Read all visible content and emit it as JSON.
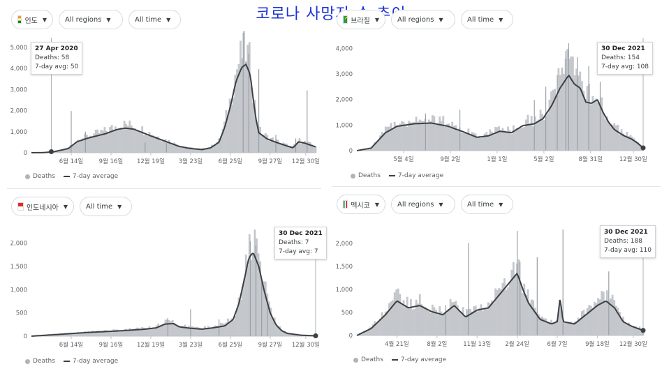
{
  "title": "코로나 사망자 수 추이",
  "legend": {
    "bars": "Deaths",
    "line": "7-day average"
  },
  "chart_data": [
    {
      "id": "india",
      "type": "bar",
      "controls": [
        {
          "kind": "country",
          "flag": "in",
          "label": "인도"
        },
        {
          "kind": "select",
          "label": "All regions"
        },
        {
          "kind": "select",
          "label": "All time"
        }
      ],
      "x_ticks": [
        "6월 14일",
        "9월 16일",
        "12월 19일",
        "3월 23일",
        "6월 25일",
        "9월 27일",
        "12월 30일"
      ],
      "y_ticks": [
        0,
        1000,
        2000,
        3000,
        4000,
        5000
      ],
      "y_tick_labels": [
        "0",
        "1,000",
        "2,000",
        "3,000",
        "4,000",
        "5,000"
      ],
      "ylim": [
        0,
        5200
      ],
      "avg_keyframes": [
        [
          0,
          0
        ],
        [
          0.04,
          5
        ],
        [
          0.08,
          50
        ],
        [
          0.13,
          200
        ],
        [
          0.16,
          520
        ],
        [
          0.2,
          700
        ],
        [
          0.26,
          900
        ],
        [
          0.3,
          1100
        ],
        [
          0.33,
          1170
        ],
        [
          0.36,
          1120
        ],
        [
          0.42,
          800
        ],
        [
          0.48,
          500
        ],
        [
          0.52,
          300
        ],
        [
          0.56,
          200
        ],
        [
          0.6,
          150
        ],
        [
          0.63,
          230
        ],
        [
          0.66,
          500
        ],
        [
          0.68,
          1200
        ],
        [
          0.7,
          2200
        ],
        [
          0.72,
          3400
        ],
        [
          0.74,
          4050
        ],
        [
          0.755,
          4200
        ],
        [
          0.77,
          3700
        ],
        [
          0.78,
          2600
        ],
        [
          0.79,
          1600
        ],
        [
          0.8,
          950
        ],
        [
          0.83,
          650
        ],
        [
          0.86,
          500
        ],
        [
          0.89,
          360
        ],
        [
          0.92,
          230
        ],
        [
          0.94,
          520
        ],
        [
          0.96,
          460
        ],
        [
          1,
          280
        ]
      ],
      "spikes": [
        [
          0.14,
          1980
        ],
        [
          0.19,
          1000
        ],
        [
          0.4,
          480
        ],
        [
          0.475,
          460
        ],
        [
          0.745,
          5700
        ],
        [
          0.765,
          4700
        ],
        [
          0.8,
          3970
        ],
        [
          0.86,
          850
        ],
        [
          0.93,
          680
        ],
        [
          0.97,
          2960
        ]
      ],
      "tooltip": {
        "date": "27 Apr 2020",
        "deaths": "Deaths: 58",
        "avg": "7-day avg: 50",
        "at": 0.07,
        "value": 50
      }
    },
    {
      "id": "brazil",
      "type": "bar",
      "controls": [
        {
          "kind": "country",
          "flag": "br",
          "label": "브라질"
        },
        {
          "kind": "select",
          "label": "All regions"
        },
        {
          "kind": "select",
          "label": "All time"
        }
      ],
      "x_ticks": [
        "5월 4일",
        "9월 2일",
        "1월 1일",
        "5월 2일",
        "8월 31일",
        "12월 30일"
      ],
      "y_ticks": [
        0,
        1000,
        2000,
        3000,
        4000
      ],
      "y_tick_labels": [
        "0",
        "1,000",
        "2,000",
        "3,000",
        "4,000"
      ],
      "ylim": [
        0,
        4200
      ],
      "avg_keyframes": [
        [
          0,
          0
        ],
        [
          0.05,
          100
        ],
        [
          0.1,
          700
        ],
        [
          0.14,
          950
        ],
        [
          0.2,
          1050
        ],
        [
          0.26,
          1080
        ],
        [
          0.32,
          950
        ],
        [
          0.38,
          700
        ],
        [
          0.42,
          520
        ],
        [
          0.46,
          580
        ],
        [
          0.5,
          760
        ],
        [
          0.54,
          700
        ],
        [
          0.58,
          980
        ],
        [
          0.62,
          1050
        ],
        [
          0.65,
          1250
        ],
        [
          0.68,
          1750
        ],
        [
          0.71,
          2450
        ],
        [
          0.74,
          2950
        ],
        [
          0.76,
          2600
        ],
        [
          0.78,
          2450
        ],
        [
          0.8,
          1900
        ],
        [
          0.82,
          1850
        ],
        [
          0.84,
          2000
        ],
        [
          0.86,
          1500
        ],
        [
          0.88,
          1100
        ],
        [
          0.9,
          820
        ],
        [
          0.93,
          600
        ],
        [
          0.96,
          450
        ],
        [
          0.98,
          300
        ],
        [
          1,
          108
        ]
      ],
      "spikes": [
        [
          0.74,
          4200
        ],
        [
          0.73,
          3900
        ],
        [
          0.77,
          3650
        ],
        [
          0.81,
          3300
        ],
        [
          0.85,
          2700
        ],
        [
          0.7,
          2950
        ],
        [
          0.62,
          1980
        ],
        [
          0.66,
          2500
        ],
        [
          0.36,
          1600
        ],
        [
          0.24,
          1450
        ]
      ],
      "tooltip": {
        "date": "30 Dec 2021",
        "deaths": "Deaths: 154",
        "avg": "7-day avg: 108",
        "at": 1,
        "value": 108
      }
    },
    {
      "id": "indonesia",
      "type": "bar",
      "controls": [
        {
          "kind": "country",
          "flag": "id",
          "label": "인도네시아"
        },
        {
          "kind": "select",
          "label": "All time"
        }
      ],
      "x_ticks": [
        "6월 14일",
        "9월 16일",
        "12월 19일",
        "3월 23일",
        "6월 25일",
        "9월 27일",
        "12월 30일"
      ],
      "y_ticks": [
        0,
        500,
        1000,
        1500,
        2000
      ],
      "y_tick_labels": [
        "0",
        "500",
        "1,000",
        "1,500",
        "2,000"
      ],
      "ylim": [
        0,
        2100
      ],
      "avg_keyframes": [
        [
          0,
          0
        ],
        [
          0.05,
          20
        ],
        [
          0.1,
          40
        ],
        [
          0.2,
          80
        ],
        [
          0.3,
          110
        ],
        [
          0.4,
          150
        ],
        [
          0.44,
          180
        ],
        [
          0.47,
          260
        ],
        [
          0.5,
          270
        ],
        [
          0.52,
          200
        ],
        [
          0.56,
          170
        ],
        [
          0.6,
          150
        ],
        [
          0.64,
          180
        ],
        [
          0.68,
          220
        ],
        [
          0.71,
          360
        ],
        [
          0.73,
          700
        ],
        [
          0.75,
          1250
        ],
        [
          0.765,
          1680
        ],
        [
          0.78,
          1800
        ],
        [
          0.8,
          1500
        ],
        [
          0.82,
          950
        ],
        [
          0.84,
          500
        ],
        [
          0.86,
          250
        ],
        [
          0.88,
          120
        ],
        [
          0.9,
          60
        ],
        [
          0.95,
          20
        ],
        [
          1,
          7
        ]
      ],
      "spikes": [
        [
          0.77,
          2040
        ],
        [
          0.79,
          1950
        ],
        [
          0.81,
          1230
        ],
        [
          0.56,
          580
        ],
        [
          0.66,
          360
        ],
        [
          0.83,
          620
        ],
        [
          0.48,
          390
        ]
      ],
      "tooltip": {
        "date": "30 Dec 2021",
        "deaths": "Deaths: 7",
        "avg": "7-day avg: 7",
        "at": 1,
        "value": 7
      }
    },
    {
      "id": "mexico",
      "type": "bar",
      "controls": [
        {
          "kind": "country",
          "flag": "mx",
          "label": "멕시코"
        },
        {
          "kind": "select",
          "label": "All regions"
        },
        {
          "kind": "select",
          "label": "All time"
        }
      ],
      "x_ticks": [
        "4월 21일",
        "8월 2일",
        "11월 13일",
        "2월 24일",
        "6월 7일",
        "9월 18일",
        "12월 30일"
      ],
      "y_ticks": [
        0,
        500,
        1000,
        1500,
        2000
      ],
      "y_tick_labels": [
        "0",
        "500",
        "1,000",
        "1,500",
        "2,000"
      ],
      "ylim": [
        0,
        2150
      ],
      "avg_keyframes": [
        [
          0,
          0
        ],
        [
          0.05,
          150
        ],
        [
          0.1,
          450
        ],
        [
          0.14,
          750
        ],
        [
          0.18,
          600
        ],
        [
          0.22,
          650
        ],
        [
          0.26,
          520
        ],
        [
          0.3,
          450
        ],
        [
          0.34,
          650
        ],
        [
          0.38,
          400
        ],
        [
          0.42,
          550
        ],
        [
          0.46,
          600
        ],
        [
          0.5,
          900
        ],
        [
          0.54,
          1200
        ],
        [
          0.56,
          1350
        ],
        [
          0.58,
          1000
        ],
        [
          0.6,
          700
        ],
        [
          0.64,
          350
        ],
        [
          0.68,
          250
        ],
        [
          0.7,
          300
        ],
        [
          0.71,
          820
        ],
        [
          0.72,
          300
        ],
        [
          0.76,
          250
        ],
        [
          0.8,
          450
        ],
        [
          0.84,
          650
        ],
        [
          0.87,
          750
        ],
        [
          0.9,
          600
        ],
        [
          0.93,
          300
        ],
        [
          0.96,
          200
        ],
        [
          1,
          110
        ]
      ],
      "spikes": [
        [
          0.39,
          2010
        ],
        [
          0.56,
          2270
        ],
        [
          0.63,
          1700
        ],
        [
          0.72,
          2300
        ],
        [
          0.57,
          1600
        ],
        [
          0.88,
          1390
        ],
        [
          0.31,
          660
        ]
      ],
      "tooltip": {
        "date": "30 Dec 2021",
        "deaths": "Deaths: 188",
        "avg": "7-day avg: 110",
        "at": 1,
        "value": 110
      }
    }
  ]
}
